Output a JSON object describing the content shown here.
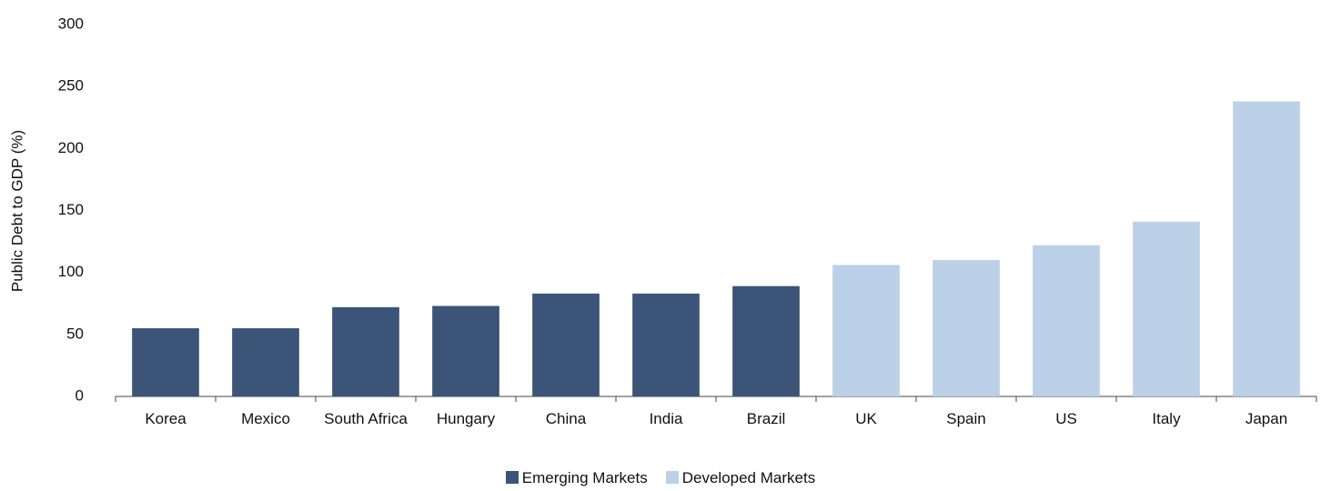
{
  "chart_data": {
    "type": "bar",
    "y_label": "Public Debt to GDP (%)",
    "categories": [
      "Korea",
      "Mexico",
      "South Africa",
      "Hungary",
      "China",
      "India",
      "Brazil",
      "UK",
      "Spain",
      "US",
      "Italy",
      "Japan"
    ],
    "series": [
      {
        "name": "Emerging Markets",
        "color": "#3b5478",
        "values": [
          55,
          55,
          72,
          73,
          83,
          83,
          89,
          null,
          null,
          null,
          null,
          null
        ]
      },
      {
        "name": "Developed Markets",
        "color": "#bcd0e8",
        "values": [
          null,
          null,
          null,
          null,
          null,
          null,
          null,
          106,
          110,
          122,
          141,
          238
        ]
      }
    ],
    "ylim": [
      0,
      300
    ],
    "yticks": [
      0,
      50,
      100,
      150,
      200,
      250,
      300
    ],
    "grid": false,
    "legend": "bottom"
  }
}
